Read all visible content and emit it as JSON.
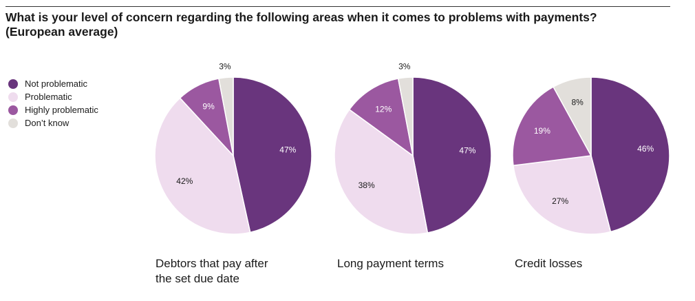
{
  "title_line1": "What is your level of concern regarding the following areas when it comes to problems with payments?",
  "title_line2": "(European average)",
  "legend": [
    {
      "label": "Not problematic",
      "color": "#69357d"
    },
    {
      "label": "Problematic",
      "color": "#efdcee"
    },
    {
      "label": "Highly problematic",
      "color": "#9b58a0"
    },
    {
      "label": "Don’t know",
      "color": "#e2dfdb"
    }
  ],
  "chart_data": [
    {
      "type": "pie",
      "title": "Debtors that pay after the set due date",
      "title_lines": [
        "Debtors that pay after",
        "the set due date"
      ],
      "slices": [
        {
          "name": "Not problematic",
          "value": 47,
          "label": "47%"
        },
        {
          "name": "Problematic",
          "value": 42,
          "label": "42%"
        },
        {
          "name": "Highly problematic",
          "value": 9,
          "label": "9%"
        },
        {
          "name": "Don’t know",
          "value": 3,
          "label": "3%"
        }
      ]
    },
    {
      "type": "pie",
      "title": "Long payment terms",
      "title_lines": [
        "Long payment terms"
      ],
      "slices": [
        {
          "name": "Not problematic",
          "value": 47,
          "label": "47%"
        },
        {
          "name": "Problematic",
          "value": 38,
          "label": "38%"
        },
        {
          "name": "Highly problematic",
          "value": 12,
          "label": "12%"
        },
        {
          "name": "Don’t know",
          "value": 3,
          "label": "3%"
        }
      ]
    },
    {
      "type": "pie",
      "title": "Credit losses",
      "title_lines": [
        "Credit losses"
      ],
      "slices": [
        {
          "name": "Not problematic",
          "value": 46,
          "label": "46%"
        },
        {
          "name": "Problematic",
          "value": 27,
          "label": "27%"
        },
        {
          "name": "Highly problematic",
          "value": 19,
          "label": "19%"
        },
        {
          "name": "Don’t know",
          "value": 8,
          "label": "8%"
        }
      ]
    }
  ]
}
